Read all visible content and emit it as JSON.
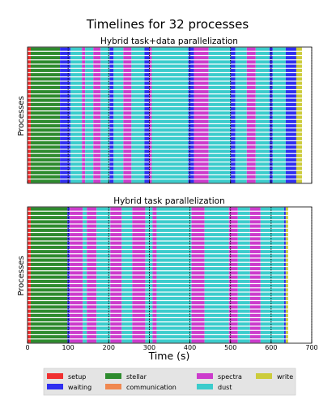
{
  "chart_data": {
    "type": "bar",
    "title": "Timelines for 32 processes",
    "xlabel": "Time (s)",
    "xlim": [
      0,
      700
    ],
    "xticks": [
      "0",
      "100",
      "200",
      "300",
      "400",
      "500",
      "600",
      "700"
    ],
    "legend_placement": "bottom",
    "legend": [
      {
        "name": "setup",
        "color": "#f03030"
      },
      {
        "name": "waiting",
        "color": "#2f2ff0"
      },
      {
        "name": "stellar",
        "color": "#2e8b2e"
      },
      {
        "name": "communication",
        "color": "#f08850"
      },
      {
        "name": "spectra",
        "color": "#cc3ccc"
      },
      {
        "name": "dust",
        "color": "#3ccccc"
      },
      {
        "name": "write",
        "color": "#cccc3c"
      }
    ],
    "subplots": [
      {
        "title": "Hybrid task+data parallelization",
        "ylabel": "Processes",
        "processes": 32,
        "iteration_markers": [
          100,
          200,
          300,
          400,
          500,
          600,
          700
        ],
        "segments": [
          {
            "phase": "setup",
            "start": 0,
            "end": 8
          },
          {
            "phase": "stellar",
            "start": 8,
            "end": 80
          },
          {
            "phase": "waiting",
            "start": 80,
            "end": 106
          },
          {
            "phase": "dust",
            "start": 106,
            "end": 134
          },
          {
            "phase": "spectra",
            "start": 134,
            "end": 142
          },
          {
            "phase": "dust",
            "start": 142,
            "end": 162
          },
          {
            "phase": "spectra",
            "start": 162,
            "end": 180
          },
          {
            "phase": "dust",
            "start": 180,
            "end": 202
          },
          {
            "phase": "waiting",
            "start": 202,
            "end": 212
          },
          {
            "phase": "dust",
            "start": 212,
            "end": 236
          },
          {
            "phase": "spectra",
            "start": 236,
            "end": 256
          },
          {
            "phase": "dust",
            "start": 256,
            "end": 288
          },
          {
            "phase": "waiting",
            "start": 288,
            "end": 300
          },
          {
            "phase": "spectra",
            "start": 300,
            "end": 306
          },
          {
            "phase": "dust",
            "start": 306,
            "end": 396
          },
          {
            "phase": "waiting",
            "start": 396,
            "end": 410
          },
          {
            "phase": "spectra",
            "start": 410,
            "end": 446
          },
          {
            "phase": "dust",
            "start": 446,
            "end": 500
          },
          {
            "phase": "waiting",
            "start": 500,
            "end": 512
          },
          {
            "phase": "dust",
            "start": 512,
            "end": 540
          },
          {
            "phase": "spectra",
            "start": 540,
            "end": 562
          },
          {
            "phase": "dust",
            "start": 562,
            "end": 596
          },
          {
            "phase": "waiting",
            "start": 596,
            "end": 604
          },
          {
            "phase": "dust",
            "start": 604,
            "end": 636
          },
          {
            "phase": "waiting",
            "start": 636,
            "end": 662
          },
          {
            "phase": "write",
            "start": 662,
            "end": 676
          }
        ]
      },
      {
        "title": "Hybrid task parallelization",
        "ylabel": "Processes",
        "processes": 32,
        "iteration_markers": [
          100,
          200,
          300,
          400,
          500,
          600,
          700
        ],
        "segments": [
          {
            "phase": "setup",
            "start": 0,
            "end": 8
          },
          {
            "phase": "stellar",
            "start": 8,
            "end": 98
          },
          {
            "phase": "waiting",
            "start": 98,
            "end": 104
          },
          {
            "phase": "spectra",
            "start": 104,
            "end": 136
          },
          {
            "phase": "dust",
            "start": 136,
            "end": 146
          },
          {
            "phase": "spectra",
            "start": 146,
            "end": 170
          },
          {
            "phase": "dust",
            "start": 170,
            "end": 204
          },
          {
            "phase": "spectra",
            "start": 204,
            "end": 232
          },
          {
            "phase": "dust",
            "start": 232,
            "end": 258
          },
          {
            "phase": "spectra",
            "start": 258,
            "end": 290
          },
          {
            "phase": "dust",
            "start": 290,
            "end": 308
          },
          {
            "phase": "spectra",
            "start": 308,
            "end": 318
          },
          {
            "phase": "dust",
            "start": 318,
            "end": 404
          },
          {
            "phase": "spectra",
            "start": 404,
            "end": 436
          },
          {
            "phase": "dust",
            "start": 436,
            "end": 496
          },
          {
            "phase": "spectra",
            "start": 496,
            "end": 518
          },
          {
            "phase": "dust",
            "start": 518,
            "end": 548
          },
          {
            "phase": "spectra",
            "start": 548,
            "end": 574
          },
          {
            "phase": "dust",
            "start": 574,
            "end": 632
          },
          {
            "phase": "waiting",
            "start": 632,
            "end": 636
          },
          {
            "phase": "write",
            "start": 636,
            "end": 642
          }
        ]
      }
    ]
  }
}
